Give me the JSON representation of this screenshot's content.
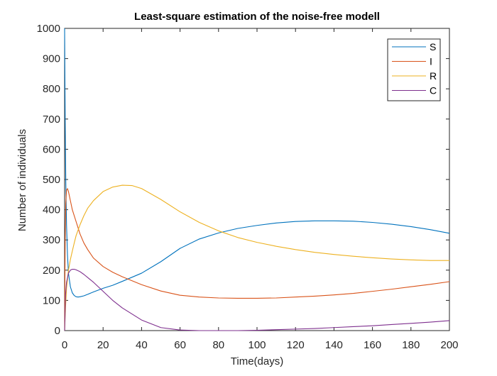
{
  "figure": {
    "background": "#ffffff"
  },
  "chart_data": {
    "type": "line",
    "title": "Least-square estimation of the noise-free modell",
    "xlabel": "Time(days)",
    "ylabel": "Number of individuals",
    "xlim": [
      0,
      200
    ],
    "ylim": [
      0,
      1000
    ],
    "xticks": [
      0,
      20,
      40,
      60,
      80,
      100,
      120,
      140,
      160,
      180,
      200
    ],
    "yticks": [
      0,
      100,
      200,
      300,
      400,
      500,
      600,
      700,
      800,
      900,
      1000
    ],
    "grid": false,
    "legend_position": "top-right",
    "series": [
      {
        "name": "S",
        "color": "#0072BD",
        "x": [
          0,
          0.3,
          0.6,
          1,
          1.5,
          2,
          3,
          4,
          5,
          6,
          7,
          8,
          10,
          12,
          15,
          20,
          25,
          30,
          40,
          50,
          60,
          70,
          80,
          90,
          100,
          110,
          120,
          130,
          140,
          150,
          160,
          170,
          180,
          190,
          200
        ],
        "y": [
          1000,
          700,
          500,
          350,
          250,
          190,
          145,
          125,
          116,
          112,
          111,
          112,
          115,
          120,
          128,
          140,
          150,
          163,
          190,
          228,
          272,
          303,
          323,
          338,
          348,
          356,
          361,
          363,
          363,
          362,
          358,
          352,
          344,
          334,
          322
        ]
      },
      {
        "name": "I",
        "color": "#D95319",
        "x": [
          0,
          0.3,
          0.6,
          1,
          1.5,
          2,
          3,
          4,
          6,
          8,
          10,
          12,
          15,
          20,
          25,
          30,
          40,
          50,
          60,
          70,
          80,
          90,
          100,
          110,
          120,
          130,
          140,
          150,
          160,
          170,
          180,
          190,
          200
        ],
        "y": [
          0,
          300,
          420,
          465,
          470,
          460,
          430,
          400,
          360,
          320,
          290,
          268,
          240,
          212,
          193,
          178,
          152,
          131,
          117,
          111,
          108,
          107,
          107,
          108,
          111,
          114,
          118,
          123,
          130,
          137,
          145,
          153,
          162
        ]
      },
      {
        "name": "R",
        "color": "#EDB120",
        "x": [
          0,
          0.5,
          1,
          2,
          3,
          4,
          5,
          6,
          8,
          10,
          12,
          15,
          20,
          25,
          30,
          35,
          40,
          50,
          60,
          70,
          80,
          90,
          100,
          110,
          120,
          130,
          140,
          150,
          160,
          170,
          180,
          190,
          200
        ],
        "y": [
          0,
          80,
          140,
          200,
          235,
          263,
          290,
          315,
          350,
          380,
          405,
          430,
          460,
          475,
          481,
          480,
          470,
          434,
          393,
          358,
          330,
          308,
          292,
          279,
          268,
          259,
          252,
          246,
          241,
          237,
          234,
          232,
          232
        ]
      },
      {
        "name": "C",
        "color": "#7E2F8E",
        "x": [
          0,
          0.5,
          1,
          2,
          3,
          4,
          5,
          6,
          8,
          10,
          15,
          20,
          25,
          30,
          40,
          50,
          60,
          70,
          80,
          90,
          100,
          110,
          120,
          130,
          140,
          150,
          160,
          170,
          180,
          190,
          200
        ],
        "y": [
          0,
          120,
          160,
          190,
          200,
          203,
          203,
          201,
          195,
          186,
          160,
          130,
          100,
          75,
          35,
          10,
          2,
          0,
          0,
          0,
          1,
          3,
          5,
          7,
          10,
          13,
          16,
          20,
          24,
          28,
          33
        ]
      }
    ]
  }
}
